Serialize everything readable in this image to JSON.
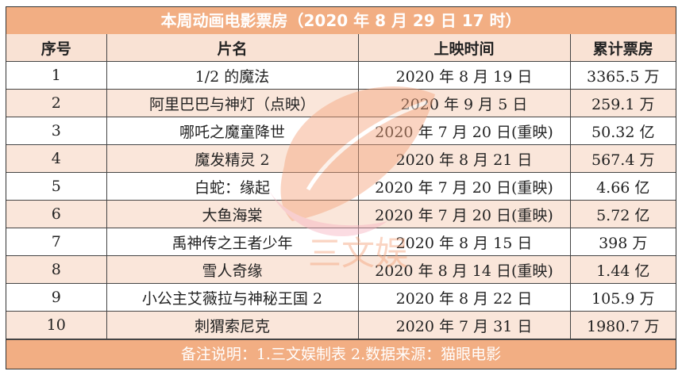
{
  "title": "本周动画电影票房（2020 年 8 月 29 日 17 时）",
  "columns": [
    "序号",
    "片名",
    "上映时间",
    "累计票房"
  ],
  "rows": [
    [
      "1",
      "1/2 的魔法",
      "2020 年 8 月 19 日",
      "3365.5 万"
    ],
    [
      "2",
      "阿里巴巴与神灯（点映）",
      "2020 年 9 月 5 日",
      "259.1 万"
    ],
    [
      "3",
      "哪吒之魔童降世",
      "2020 年 7 月 20 日(重映)",
      "50.32 亿"
    ],
    [
      "4",
      "魔发精灵 2",
      "2020 年 8 月 21 日",
      "567.4 万"
    ],
    [
      "5",
      "白蛇：缘起",
      "2020 年 7 月 20 日(重映)",
      "4.66 亿"
    ],
    [
      "6",
      "大鱼海棠",
      "2020 年 7 月 20 日(重映)",
      "5.72 亿"
    ],
    [
      "7",
      "禹神传之王者少年",
      "2020 年 8 月 15 日",
      "398 万"
    ],
    [
      "8",
      "雪人奇缘",
      "2020 年 8 月 14 日(重映)",
      "1.44 亿"
    ],
    [
      "9",
      "小公主艾薇拉与神秘王国 2",
      "2020 年 8 月 22 日",
      "105.9 万"
    ],
    [
      "10",
      "刺猬索尼克",
      "2020 年 7 月 31 日",
      "1980.7 万"
    ]
  ],
  "footer": "备注说明：1.三文娱制表 2.数据来源：猫眼电影",
  "watermark": "三文娱",
  "colors": {
    "accent": "#f2ae83",
    "row_alt": "#f9e2d4"
  }
}
